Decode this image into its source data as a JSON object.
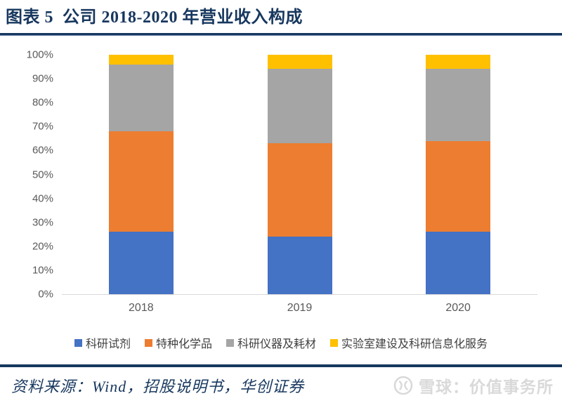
{
  "header": {
    "title": "图表 5  公司 2018-2020 年营业收入构成"
  },
  "chart_data": {
    "type": "bar",
    "stacked": true,
    "title": "公司 2018-2020 年营业收入构成",
    "xlabel": "",
    "ylabel": "",
    "categories": [
      "2018",
      "2019",
      "2020"
    ],
    "series": [
      {
        "name": "科研试剂",
        "color": "#4472C4",
        "values": [
          26,
          24,
          26
        ]
      },
      {
        "name": "特种化学品",
        "color": "#ED7D31",
        "values": [
          42,
          39,
          38
        ]
      },
      {
        "name": "科研仪器及耗材",
        "color": "#A5A5A5",
        "values": [
          28,
          31,
          30
        ]
      },
      {
        "name": "实验室建设及科研信息化服务",
        "color": "#FFC000",
        "values": [
          4,
          6,
          6
        ]
      }
    ],
    "ylim": [
      0,
      100
    ],
    "yticks": [
      "0%",
      "10%",
      "20%",
      "30%",
      "40%",
      "50%",
      "60%",
      "70%",
      "80%",
      "90%",
      "100%"
    ],
    "grid": false,
    "legend_position": "bottom",
    "unit": "percent"
  },
  "footer": {
    "source_text": "资料来源：Wind，招股说明书，华创证券",
    "watermark_text": "雪球：价值事务所"
  },
  "colors": {
    "accent_navy": "#17375E",
    "axis_label": "#595959",
    "legend_text": "#404040",
    "axis_line": "#D9D9D9",
    "watermark_gray": "#D9D9D9"
  }
}
